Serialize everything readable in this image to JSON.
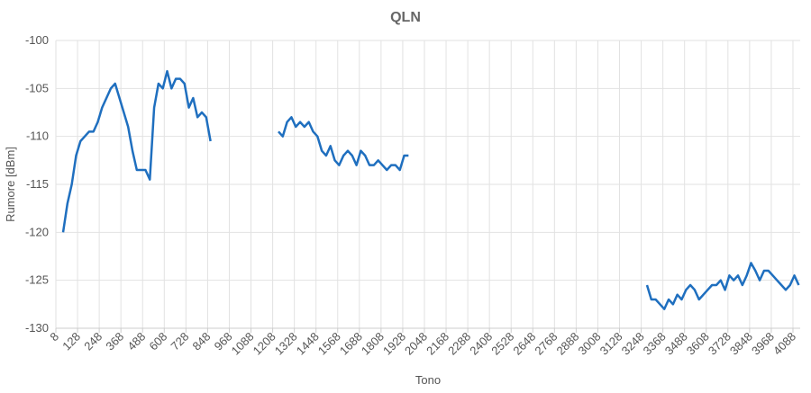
{
  "chart_data": {
    "type": "line",
    "title": "QLN",
    "x_label": "Tono",
    "y_label": "Rumore [dBm]",
    "x": [
      48,
      72,
      96,
      120,
      144,
      168,
      192,
      216,
      240,
      264,
      288,
      312,
      336,
      360,
      384,
      408,
      432,
      456,
      480,
      504,
      528,
      552,
      576,
      600,
      624,
      648,
      672,
      696,
      720,
      744,
      768,
      792,
      816,
      840,
      864,
      1000,
      1240,
      1264,
      1288,
      1312,
      1336,
      1360,
      1384,
      1408,
      1432,
      1456,
      1480,
      1504,
      1528,
      1552,
      1576,
      1600,
      1624,
      1648,
      1672,
      1696,
      1720,
      1744,
      1768,
      1792,
      1816,
      1840,
      1864,
      1888,
      1912,
      1936,
      1960,
      2500,
      3280,
      3304,
      3328,
      3352,
      3376,
      3400,
      3424,
      3448,
      3472,
      3496,
      3520,
      3544,
      3568,
      3592,
      3616,
      3640,
      3664,
      3688,
      3712,
      3736,
      3760,
      3784,
      3808,
      3832,
      3856,
      3880,
      3904,
      3928,
      3952,
      3976,
      4000,
      4024,
      4048,
      4072,
      4096,
      4120
    ],
    "series": [
      {
        "name": "QLN",
        "color": "#1f6fbf",
        "values": [
          -120,
          -117,
          -115,
          -112,
          -110.5,
          -110,
          -109.5,
          -109.5,
          -108.5,
          -107,
          -106,
          -105,
          -104.5,
          -106,
          -107.5,
          -109,
          -111.5,
          -113.5,
          -113.5,
          -113.5,
          -114.5,
          -107,
          -104.5,
          -105,
          -103.2,
          -105,
          -104,
          -104,
          -104.5,
          -107,
          -106,
          -108,
          -107.5,
          -108,
          -110.5,
          null,
          -109.5,
          -110,
          -108.5,
          -108,
          -109,
          -108.5,
          -109,
          -108.5,
          -109.5,
          -110,
          -111.5,
          -112,
          -111,
          -112.5,
          -113,
          -112,
          -111.5,
          -112,
          -113,
          -111.5,
          -112,
          -113,
          -113,
          -112.5,
          -113,
          -113.5,
          -113,
          -113,
          -113.5,
          -112,
          -112,
          null,
          -125.5,
          -127,
          -127,
          -127.5,
          -128,
          -127,
          -127.5,
          -126.5,
          -127,
          -126,
          -125.5,
          -126,
          -127,
          -126.5,
          -126,
          -125.5,
          -125.5,
          -125,
          -126,
          -124.5,
          -125,
          -124.5,
          -125.5,
          -124.5,
          -123.2,
          -124,
          -125,
          -124,
          -124,
          -124.5,
          -125,
          -125.5,
          -126,
          -125.5,
          -124.5,
          -125.5
        ]
      }
    ],
    "xlim": [
      8,
      4128
    ],
    "xticks": [
      8,
      128,
      248,
      368,
      488,
      608,
      728,
      848,
      968,
      1088,
      1208,
      1328,
      1448,
      1568,
      1688,
      1808,
      1928,
      2048,
      2168,
      2288,
      2408,
      2528,
      2648,
      2768,
      2888,
      3008,
      3128,
      3248,
      3368,
      3488,
      3608,
      3728,
      3848,
      3968,
      4088
    ],
    "ylim": [
      -130,
      -100
    ],
    "yticks": [
      -130,
      -125,
      -120,
      -115,
      -110,
      -105,
      -100
    ],
    "grid": true
  }
}
